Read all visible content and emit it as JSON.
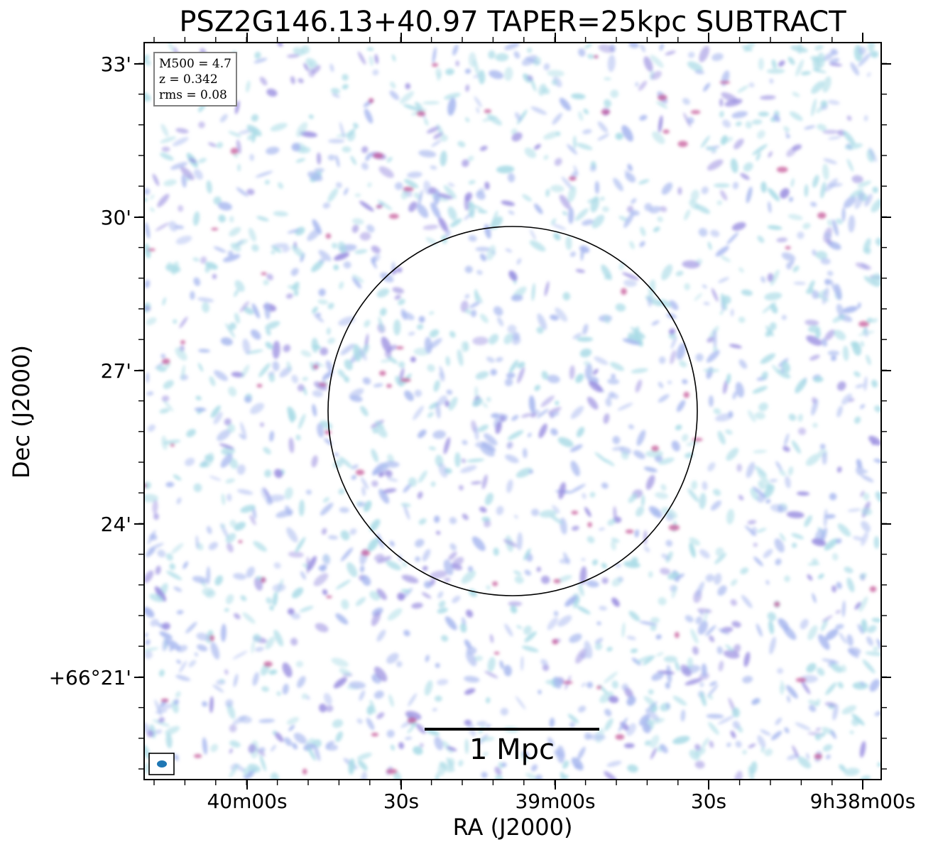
{
  "colors": {
    "noise_light": "#a9dbe6",
    "noise_mid": "#a8b8ef",
    "noise_strong": "#9a8ee0",
    "noise_peak": "#c65a9a",
    "beam_fill": "#1f77b4",
    "axes": "#000000"
  },
  "chart_data": {
    "type": "heatmap",
    "title": "PSZ2G146.13+40.97 TAPER=25kpc SUBTRACT",
    "xlabel": "RA (J2000)",
    "ylabel": "Dec (J2000)",
    "x_ticks": [
      "40m00s",
      "30s",
      "39m00s",
      "30s",
      "9h38m00s"
    ],
    "y_ticks": [
      "33'",
      "30'",
      "27'",
      "24'",
      "+66°21'"
    ],
    "annotations": [
      "M500 = 4.7",
      "z = 0.342",
      "rms = 0.08"
    ],
    "scale_bar_label": "1 Mpc",
    "overlay": "circle"
  }
}
